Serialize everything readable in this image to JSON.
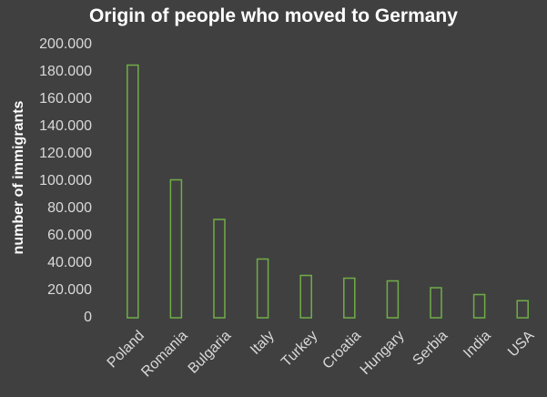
{
  "chart_data": {
    "type": "bar",
    "title": "Origin of people who moved to Germany",
    "xlabel": "",
    "ylabel": "number of immigrants",
    "categories": [
      "Poland",
      "Romania",
      "Bulgaria",
      "Italy",
      "Turkey",
      "Croatia",
      "Hungary",
      "Serbia",
      "India",
      "USA"
    ],
    "values": [
      185000,
      101000,
      72000,
      43000,
      31000,
      29000,
      27000,
      22000,
      17000,
      12500
    ],
    "ylim": [
      0,
      200000
    ],
    "yticks": [
      0,
      20000,
      40000,
      60000,
      80000,
      100000,
      120000,
      140000,
      160000,
      180000,
      200000
    ],
    "ytick_labels": [
      "0",
      "20.000",
      "40.000",
      "60.000",
      "80.000",
      "100.000",
      "120.000",
      "140.000",
      "160.000",
      "180.000",
      "200.000"
    ],
    "grid": false,
    "legend": "none",
    "bar_style": "outline",
    "colors": {
      "background": "#404040",
      "bar_outline": "#70ad47",
      "text": "#d9d9d9",
      "title": "#ffffff"
    }
  }
}
